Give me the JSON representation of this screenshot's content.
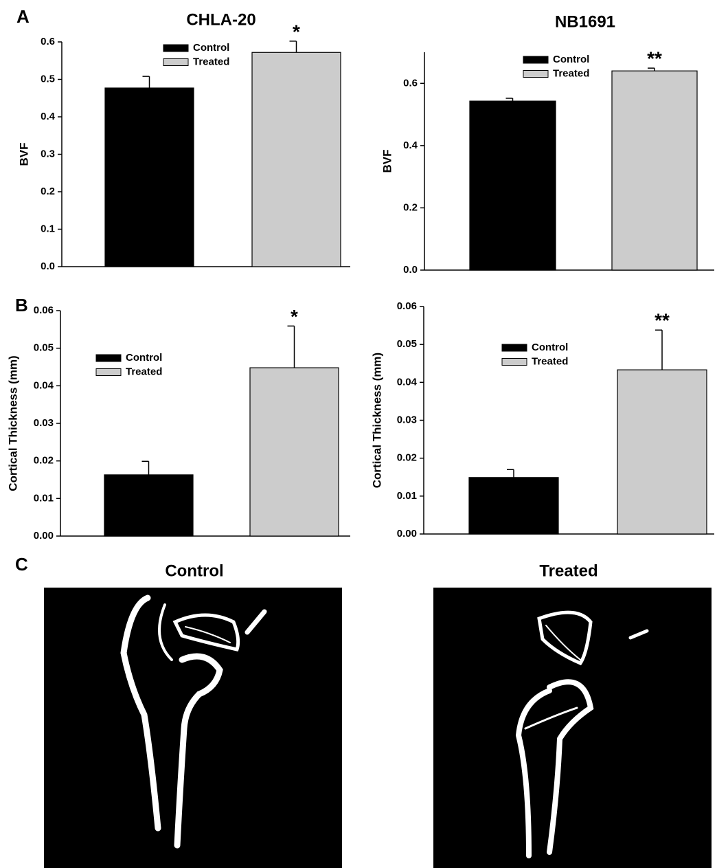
{
  "panel_labels": [
    "A",
    "B",
    "C"
  ],
  "chart_data": [
    {
      "type": "bar",
      "title": "CHLA-20",
      "ylabel": "BVF",
      "annotation": "*",
      "ylim": [
        0,
        0.6
      ],
      "yticks": [
        {
          "value": 0,
          "label": "0.0"
        },
        0.1,
        0.2,
        0.3,
        0.4,
        0.5,
        0.6
      ],
      "series": [
        {
          "name": "Control",
          "color": "#000000",
          "values": [
            0.477
          ],
          "errors": [
            0.031
          ]
        },
        {
          "name": "Treated",
          "color": "#cccccc",
          "values": [
            0.572
          ],
          "errors": [
            0.03
          ]
        }
      ]
    },
    {
      "type": "bar",
      "title": "NB1691",
      "ylabel": "BVF",
      "annotation": "**",
      "ylim": [
        0,
        0.7
      ],
      "yticks": [
        {
          "value": 0,
          "label": "0.0"
        },
        0.2,
        0.4,
        0.6
      ],
      "series": [
        {
          "name": "Control",
          "color": "#000000",
          "values": [
            0.543
          ],
          "errors": [
            0.009
          ]
        },
        {
          "name": "Treated",
          "color": "#cccccc",
          "values": [
            0.64
          ],
          "errors": [
            0.009
          ]
        }
      ]
    },
    {
      "type": "bar",
      "ylabel": "Cortical Thickness (mm)",
      "annotation": "*",
      "ylim": [
        0,
        0.06
      ],
      "yticks": [
        {
          "value": 0,
          "label": "0.00"
        },
        {
          "value": 0.01,
          "label": "0.01"
        },
        {
          "value": 0.02,
          "label": "0.02"
        },
        {
          "value": 0.03,
          "label": "0.03"
        },
        {
          "value": 0.04,
          "label": "0.04"
        },
        {
          "value": 0.05,
          "label": "0.05"
        },
        {
          "value": 0.06,
          "label": "0.06"
        }
      ],
      "series": [
        {
          "name": "Control",
          "color": "#000000",
          "values": [
            0.0163
          ],
          "errors": [
            0.0036
          ]
        },
        {
          "name": "Treated",
          "color": "#cccccc",
          "values": [
            0.0448
          ],
          "errors": [
            0.0111
          ]
        }
      ]
    },
    {
      "type": "bar",
      "ylabel": "Cortical Thickness (mm)",
      "annotation": "**",
      "ylim": [
        0,
        0.06
      ],
      "yticks": [
        {
          "value": 0,
          "label": "0.00"
        },
        {
          "value": 0.01,
          "label": "0.01"
        },
        {
          "value": 0.02,
          "label": "0.02"
        },
        {
          "value": 0.03,
          "label": "0.03"
        },
        {
          "value": 0.04,
          "label": "0.04"
        },
        {
          "value": 0.05,
          "label": "0.05"
        },
        {
          "value": 0.06,
          "label": "0.06"
        }
      ],
      "series": [
        {
          "name": "Control",
          "color": "#000000",
          "values": [
            0.0149
          ],
          "errors": [
            0.0021
          ]
        },
        {
          "name": "Treated",
          "color": "#cccccc",
          "values": [
            0.0433
          ],
          "errors": [
            0.0105
          ]
        }
      ]
    }
  ],
  "images": [
    {
      "title": "Control"
    },
    {
      "title": "Treated"
    }
  ]
}
